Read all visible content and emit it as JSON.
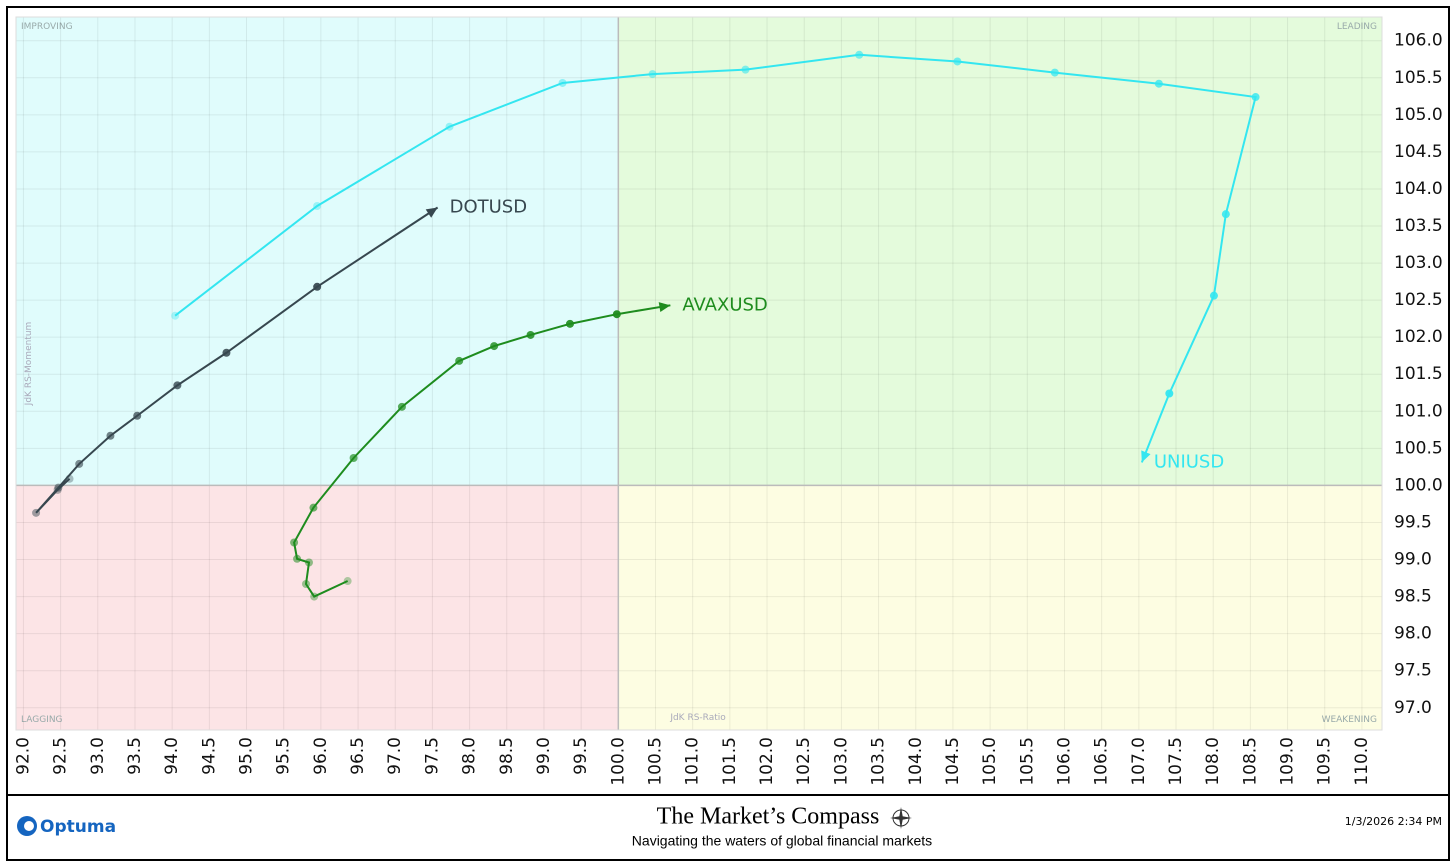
{
  "chart_data": {
    "type": "rrg",
    "xlim": [
      91.9,
      110.27
    ],
    "ylim": [
      96.7,
      106.32
    ],
    "center": [
      100,
      100
    ],
    "x_label": "JdK RS-Ratio",
    "y_label": "JdK RS-Momentum",
    "quadrants": [
      {
        "label": "IMPROVING",
        "color": "#e0fcfc"
      },
      {
        "label": "LEADING",
        "color": "#e4fbdc"
      },
      {
        "label": "LAGGING",
        "color": "#fce4e6"
      },
      {
        "label": "WEAKENING",
        "color": "#fdfde2"
      }
    ],
    "grid": true,
    "xticks": [
      {
        "value": 92,
        "label": "92.0"
      },
      92.5,
      {
        "value": 93,
        "label": "93.0"
      },
      93.5,
      {
        "value": 94,
        "label": "94.0"
      },
      94.5,
      {
        "value": 95,
        "label": "95.0"
      },
      95.5,
      {
        "value": 96,
        "label": "96.0"
      },
      96.5,
      {
        "value": 97,
        "label": "97.0"
      },
      97.5,
      {
        "value": 98,
        "label": "98.0"
      },
      98.5,
      {
        "value": 99,
        "label": "99.0"
      },
      99.5,
      {
        "value": 100,
        "label": "100.0"
      },
      100.5,
      {
        "value": 101,
        "label": "101.0"
      },
      101.5,
      {
        "value": 102,
        "label": "102.0"
      },
      102.5,
      {
        "value": 103,
        "label": "103.0"
      },
      103.5,
      {
        "value": 104,
        "label": "104.0"
      },
      104.5,
      {
        "value": 105,
        "label": "105.0"
      },
      105.5,
      {
        "value": 106,
        "label": "106.0"
      },
      106.5,
      {
        "value": 107,
        "label": "107.0"
      },
      107.5,
      {
        "value": 108,
        "label": "108.0"
      },
      108.5,
      {
        "value": 109,
        "label": "109.0"
      },
      109.5,
      {
        "value": 110,
        "label": "110.0"
      }
    ],
    "yticks": [
      {
        "value": 97,
        "label": "97.0"
      },
      97.5,
      {
        "value": 98,
        "label": "98.0"
      },
      98.5,
      {
        "value": 99,
        "label": "99.0"
      },
      99.5,
      {
        "value": 100,
        "label": "100.0"
      },
      100.5,
      {
        "value": 101,
        "label": "101.0"
      },
      101.5,
      {
        "value": 102,
        "label": "102.0"
      },
      102.5,
      {
        "value": 103,
        "label": "103.0"
      },
      103.5,
      {
        "value": 104,
        "label": "104.0"
      },
      104.5,
      {
        "value": 105,
        "label": "105.0"
      },
      105.5,
      {
        "value": 106,
        "label": "106.0"
      }
    ],
    "series": [
      {
        "name": "DOTUSD",
        "color": "#37474f",
        "x": [
          92.62,
          92.46,
          92.17,
          92.47,
          92.75,
          93.17,
          93.53,
          94.07,
          94.73,
          95.95,
          97.57
        ],
        "values": [
          100.09,
          99.94,
          99.63,
          99.97,
          100.29,
          100.67,
          100.94,
          101.35,
          101.79,
          102.68,
          103.75
        ]
      },
      {
        "name": "AVAXUSD",
        "color": "#1e8c1e",
        "x": [
          96.36,
          95.91,
          95.8,
          95.84,
          95.68,
          95.64,
          95.9,
          96.44,
          97.09,
          97.86,
          98.33,
          98.82,
          99.35,
          99.98,
          100.7
        ],
        "values": [
          98.71,
          98.5,
          98.67,
          98.96,
          99.01,
          99.23,
          99.7,
          100.37,
          101.06,
          101.68,
          101.88,
          102.03,
          102.18,
          102.31,
          102.43
        ]
      },
      {
        "name": "UNIUSD",
        "color": "#33e6f0",
        "x": [
          94.04,
          95.95,
          97.73,
          99.25,
          100.46,
          101.71,
          103.24,
          104.56,
          105.87,
          107.27,
          108.57,
          108.17,
          108.01,
          107.41,
          107.04
        ],
        "values": [
          102.29,
          103.77,
          104.84,
          105.43,
          105.55,
          105.61,
          105.81,
          105.72,
          105.57,
          105.42,
          105.24,
          103.66,
          102.56,
          101.24,
          100.31
        ]
      }
    ]
  },
  "footer": {
    "brand": "Optuma",
    "title": "The Market’s Compass",
    "subtitle": "Navigating the waters of global financial markets",
    "timestamp": "1/3/2026 2:34 PM"
  }
}
